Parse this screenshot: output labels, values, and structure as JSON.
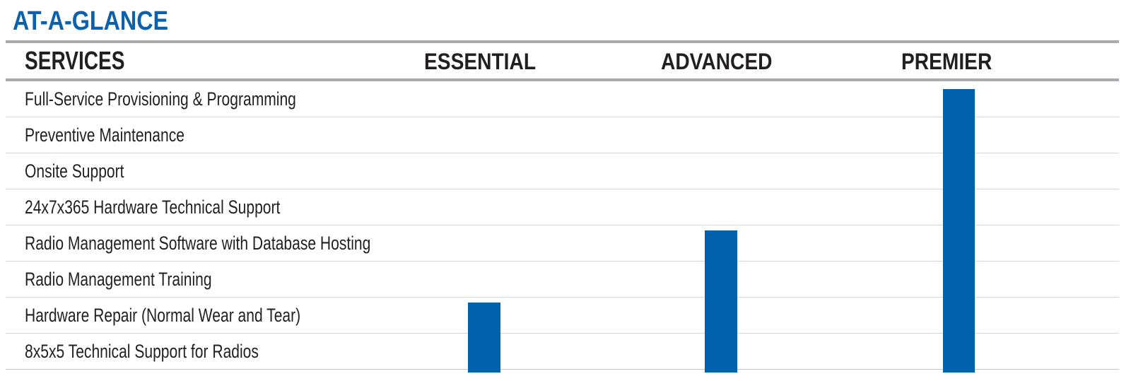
{
  "title": "AT-A-GLANCE",
  "table": {
    "services_header": "SERVICES",
    "columns": [
      {
        "id": "essential",
        "label": "ESSENTIAL"
      },
      {
        "id": "advanced",
        "label": "ADVANCED"
      },
      {
        "id": "premier",
        "label": "PREMIER"
      }
    ],
    "services": [
      "Full-Service Provisioning & Programming",
      "Preventive Maintenance",
      "Onsite Support",
      "24x7x365 Hardware Technical Support",
      "Radio Management Software with Database Hosting",
      "Radio Management Training",
      "Hardware Repair (Normal Wear and Tear)",
      "8x5x5 Technical Support for Radios"
    ]
  },
  "colors": {
    "title_blue": "#0b61ac",
    "bar_blue": "#0062ae",
    "thick_rule_gray": "#a8aaad",
    "row_line_gray": "#d6d7d9",
    "text_black": "#231f20"
  },
  "chart_data": {
    "type": "table",
    "title": "AT-A-GLANCE",
    "row_header": "SERVICES",
    "columns": [
      "ESSENTIAL",
      "ADVANCED",
      "PREMIER"
    ],
    "rows": [
      "Full-Service Provisioning & Programming",
      "Preventive Maintenance",
      "Onsite Support",
      "24x7x365 Hardware Technical Support",
      "Radio Management Software with Database Hosting",
      "Radio Management Training",
      "Hardware Repair (Normal Wear and Tear)",
      "8x5x5 Technical Support for Radios"
    ],
    "coverage": {
      "ESSENTIAL": {
        "covered_row_numbers": [
          7,
          8
        ],
        "services": [
          "Hardware Repair (Normal Wear and Tear)",
          "8x5x5 Technical Support for Radios"
        ]
      },
      "ADVANCED": {
        "covered_row_numbers": [
          5,
          6,
          7,
          8
        ],
        "services": [
          "Radio Management Software with Database Hosting",
          "Radio Management Training",
          "Hardware Repair (Normal Wear and Tear)",
          "8x5x5 Technical Support for Radios"
        ]
      },
      "PREMIER": {
        "covered_row_numbers": [
          1,
          2,
          3,
          4,
          5,
          6,
          7,
          8
        ],
        "services": [
          "Full-Service Provisioning & Programming",
          "Preventive Maintenance",
          "Onsite Support",
          "24x7x365 Hardware Technical Support",
          "Radio Management Software with Database Hosting",
          "Radio Management Training",
          "Hardware Repair (Normal Wear and Tear)",
          "8x5x5 Technical Support for Radios"
        ]
      }
    },
    "representation": "Each tier column displays one solid blue vertical bar starting at the first service row included in that tier and extending down past the bottom rule of the table; every service row the bar crosses is included in the tier.",
    "grid": "horizontal row separator lines only",
    "legend_position": "none"
  }
}
